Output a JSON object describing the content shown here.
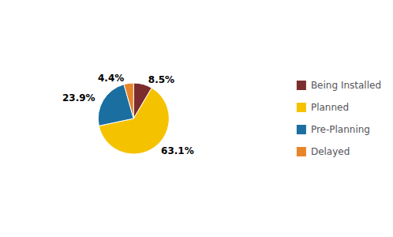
{
  "chart_data": {
    "type": "pie",
    "categories": [
      "Being Installed",
      "Planned",
      "Pre-Planning",
      "Delayed"
    ],
    "values": [
      8.5,
      63.1,
      23.9,
      4.4
    ],
    "value_labels": [
      "8.5%",
      "63.1%",
      "23.9%",
      "4.4%"
    ],
    "colors": [
      "#7B2D2D",
      "#F5C200",
      "#1A6FA0",
      "#E8852A"
    ],
    "data_labels": true,
    "legend": "right"
  }
}
